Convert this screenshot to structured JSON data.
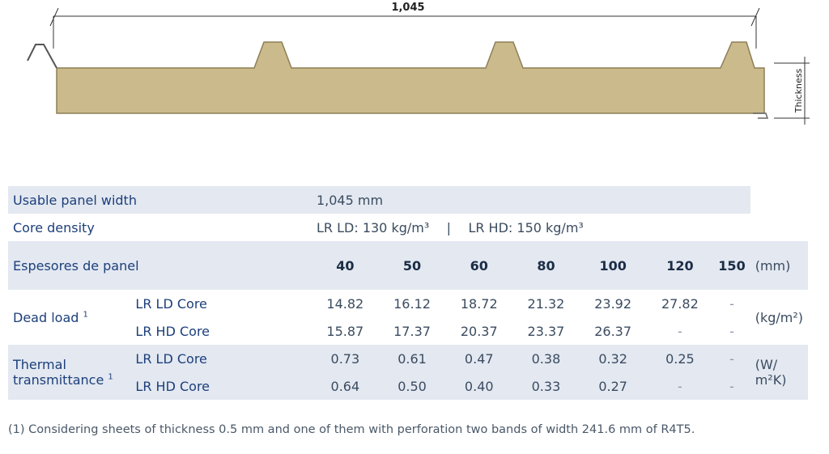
{
  "drawing": {
    "width_label": "1,045",
    "thickness_label": "Thickness"
  },
  "table": {
    "usable_width": {
      "label": "Usable panel width",
      "value": "1,045 mm"
    },
    "core_density": {
      "label": "Core density",
      "ld": "LR LD: 130 kg/m³",
      "separator": "|",
      "hd": "LR HD: 150 kg/m³"
    },
    "thickness_row": {
      "label": "Espesores de panel",
      "values": [
        "40",
        "50",
        "60",
        "80",
        "100",
        "120",
        "150"
      ],
      "unit": "(mm)"
    },
    "dead_load": {
      "label": "Dead load",
      "sup": "1",
      "unit": "(kg/m²)",
      "rows": [
        {
          "core": "LR LD Core",
          "values": [
            "14.82",
            "16.12",
            "18.72",
            "21.32",
            "23.92",
            "27.82",
            "-"
          ]
        },
        {
          "core": "LR HD Core",
          "values": [
            "15.87",
            "17.37",
            "20.37",
            "23.37",
            "26.37",
            "-",
            "-"
          ]
        }
      ]
    },
    "thermal": {
      "label_line1": "Thermal",
      "label_line2": "transmittance",
      "sup": "1",
      "unit_line1": "(W/",
      "unit_line2": "m²K)",
      "rows": [
        {
          "core": "LR LD Core",
          "values": [
            "0.73",
            "0.61",
            "0.47",
            "0.38",
            "0.32",
            "0.25",
            "-"
          ]
        },
        {
          "core": "LR HD Core",
          "values": [
            "0.64",
            "0.50",
            "0.40",
            "0.33",
            "0.27",
            "-",
            "-"
          ]
        }
      ]
    }
  },
  "footnote": "(1) Considering sheets of thickness 0.5 mm and one of them with perforation two bands of width 241.6 mm of R4T5."
}
